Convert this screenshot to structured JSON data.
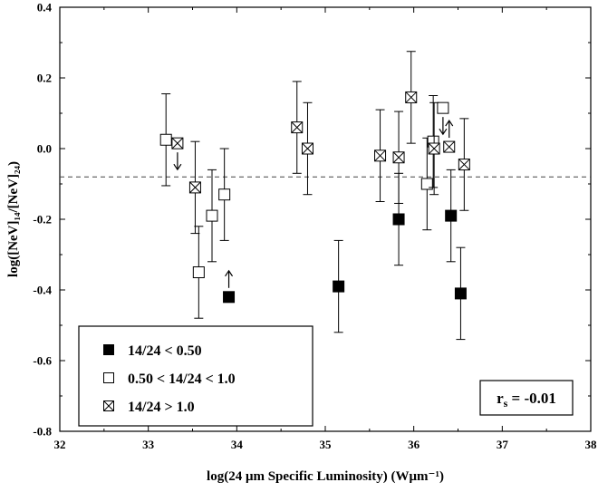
{
  "chart_data": {
    "type": "scatter",
    "xlabel": "log(24 μm Specific Luminosity) (Wμm⁻¹)",
    "ylabel": "log([NeV]₁₄/[NeV]₂₄)",
    "xlim": [
      32,
      38
    ],
    "ylim": [
      -0.8,
      0.4
    ],
    "x_ticks": [
      "32",
      "33",
      "34",
      "35",
      "36",
      "37",
      "38"
    ],
    "y_ticks": [
      "0.4",
      "0.2",
      "0.0",
      "-0.2",
      "-0.4",
      "-0.6",
      "-0.8"
    ],
    "reference_line": {
      "y": -0.08,
      "style": "dashed"
    },
    "legend_position": "bottom-left",
    "annotation": "r_s = -0.01",
    "annotation_main": "r",
    "annotation_sub": "s",
    "annotation_rest": " = -0.01",
    "series": [
      {
        "name": "14/24 < 0.50",
        "marker": "filled-square",
        "points": [
          {
            "x": 33.91,
            "y": -0.42,
            "err": 0,
            "limit": "lower"
          },
          {
            "x": 35.15,
            "y": -0.39,
            "err": 0.13
          },
          {
            "x": 35.83,
            "y": -0.2,
            "err": 0.13
          },
          {
            "x": 36.42,
            "y": -0.19,
            "err": 0.13
          },
          {
            "x": 36.53,
            "y": -0.41,
            "err": 0.13
          }
        ]
      },
      {
        "name": "0.50 < 14/24 < 1.0",
        "marker": "open-square",
        "points": [
          {
            "x": 33.2,
            "y": 0.025,
            "err": 0.13
          },
          {
            "x": 33.57,
            "y": -0.35,
            "err": 0.13
          },
          {
            "x": 33.72,
            "y": -0.19,
            "err": 0.13
          },
          {
            "x": 33.86,
            "y": -0.13,
            "err": 0.13
          },
          {
            "x": 36.15,
            "y": -0.1,
            "err": 0.13
          },
          {
            "x": 36.22,
            "y": 0.02,
            "err": 0.13
          },
          {
            "x": 36.33,
            "y": 0.115,
            "err": 0,
            "limit": "upper"
          }
        ]
      },
      {
        "name": "14/24 > 1.0",
        "marker": "crossed-square",
        "points": [
          {
            "x": 33.33,
            "y": 0.015,
            "err": 0,
            "limit": "upper"
          },
          {
            "x": 33.53,
            "y": -0.11,
            "err": 0.13
          },
          {
            "x": 34.68,
            "y": 0.06,
            "err": 0.13
          },
          {
            "x": 34.8,
            "y": 0.0,
            "err": 0.13
          },
          {
            "x": 35.62,
            "y": -0.02,
            "err": 0.13
          },
          {
            "x": 35.83,
            "y": -0.025,
            "err": 0.13
          },
          {
            "x": 35.97,
            "y": 0.145,
            "err": 0.13
          },
          {
            "x": 36.23,
            "y": 0.0,
            "err": 0.13
          },
          {
            "x": 36.4,
            "y": 0.005,
            "err": 0,
            "limit": "lower"
          },
          {
            "x": 36.57,
            "y": -0.045,
            "err": 0.13
          }
        ]
      }
    ]
  }
}
